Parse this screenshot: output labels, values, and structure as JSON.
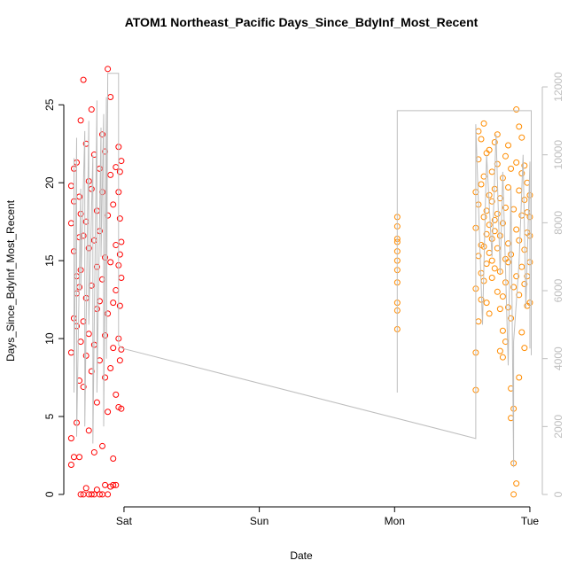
{
  "chart_data": {
    "type": "scatter",
    "title": "ATOM1 Northeast_Pacific Days_Since_BdyInf_Most_Recent",
    "x_label": "Date",
    "y_label": "Days_Since_BdyInf_Most_Recent",
    "xlim": [
      0.555,
      4.092
    ],
    "ylim": [
      -0.8,
      28.2
    ],
    "y2lim": [
      -365,
      12940
    ],
    "xticks": [
      {
        "value": 1,
        "label": "Sat"
      },
      {
        "value": 2,
        "label": "Sun"
      },
      {
        "value": 3,
        "label": "Mon"
      },
      {
        "value": 4,
        "label": "Tue"
      }
    ],
    "yticks": [
      0,
      5,
      10,
      15,
      20,
      25
    ],
    "y2ticks": [
      0,
      2000,
      4000,
      6000,
      8000,
      10000,
      12000
    ],
    "y2_color": "#bebebe",
    "series": [
      {
        "color": "#ff0000",
        "x": [
          0.61,
          0.61,
          0.61,
          0.61,
          0.61,
          0.63,
          0.63,
          0.63,
          0.63,
          0.63,
          0.65,
          0.65,
          0.65,
          0.65,
          0.65,
          0.67,
          0.67,
          0.67,
          0.67,
          0.67,
          0.68,
          0.68,
          0.68,
          0.68,
          0.68,
          0.7,
          0.7,
          0.7,
          0.7,
          0.7,
          0.72,
          0.72,
          0.72,
          0.72,
          0.72,
          0.74,
          0.74,
          0.74,
          0.74,
          0.74,
          0.76,
          0.76,
          0.76,
          0.76,
          0.76,
          0.78,
          0.78,
          0.78,
          0.78,
          0.78,
          0.8,
          0.8,
          0.8,
          0.8,
          0.8,
          0.82,
          0.82,
          0.82,
          0.82,
          0.82,
          0.84,
          0.84,
          0.84,
          0.84,
          0.84,
          0.86,
          0.86,
          0.86,
          0.86,
          0.86,
          0.88,
          0.88,
          0.88,
          0.88,
          0.88,
          0.9,
          0.9,
          0.9,
          0.9,
          0.9,
          0.92,
          0.92,
          0.92,
          0.92,
          0.92,
          0.94,
          0.94,
          0.94,
          0.94,
          0.94,
          0.96,
          0.96,
          0.96,
          0.96,
          0.96,
          0.97,
          0.97,
          0.97,
          0.97,
          0.97,
          0.98,
          0.98,
          0.98,
          0.98,
          0.98
        ],
        "values": [
          1.9,
          3.6,
          9.1,
          17.4,
          19.8,
          11.3,
          15.6,
          20.9,
          2.4,
          18.8,
          14.0,
          12.9,
          21.3,
          4.6,
          10.8,
          16.5,
          7.3,
          19.1,
          13.3,
          2.4,
          0,
          24.0,
          14.4,
          9.8,
          18.0,
          0,
          26.6,
          11.1,
          6.9,
          16.6,
          0.4,
          22.5,
          8.9,
          17.5,
          12.6,
          0,
          10.3,
          15.8,
          4.1,
          20.1,
          0,
          19.6,
          7.9,
          13.4,
          24.7,
          0,
          9.6,
          16.3,
          2.7,
          21.8,
          0.3,
          11.9,
          5.9,
          18.2,
          14.6,
          0,
          20.9,
          8.6,
          12.4,
          16.9,
          0,
          3.1,
          13.8,
          19.4,
          23.1,
          0.6,
          7.5,
          15.2,
          22.0,
          10.2,
          0,
          27.3,
          11.6,
          5.3,
          17.9,
          0.5,
          25.5,
          14.9,
          8.1,
          20.5,
          0.6,
          2.3,
          12.3,
          18.6,
          9.4,
          0.6,
          16.0,
          6.4,
          21.0,
          13.1,
          5.6,
          22.3,
          10.0,
          19.4,
          14.7,
          15.4,
          8.6,
          17.7,
          12.1,
          20.7,
          9.3,
          16.2,
          21.4,
          5.5,
          13.9
        ]
      },
      {
        "color": "#ff8c00",
        "x": [
          3.02,
          3.02,
          3.02,
          3.02,
          3.02,
          3.02,
          3.02,
          3.02,
          3.02,
          3.02,
          3.02,
          3.6,
          3.6,
          3.6,
          3.6,
          3.6,
          3.62,
          3.62,
          3.62,
          3.62,
          3.62,
          3.64,
          3.64,
          3.64,
          3.64,
          3.64,
          3.66,
          3.66,
          3.66,
          3.66,
          3.66,
          3.68,
          3.68,
          3.68,
          3.68,
          3.68,
          3.7,
          3.7,
          3.7,
          3.7,
          3.7,
          3.72,
          3.72,
          3.72,
          3.72,
          3.72,
          3.74,
          3.74,
          3.74,
          3.74,
          3.74,
          3.76,
          3.76,
          3.76,
          3.76,
          3.76,
          3.78,
          3.78,
          3.78,
          3.78,
          3.78,
          3.8,
          3.8,
          3.8,
          3.8,
          3.8,
          3.82,
          3.82,
          3.82,
          3.82,
          3.82,
          3.84,
          3.84,
          3.84,
          3.84,
          3.84,
          3.86,
          3.86,
          3.86,
          3.86,
          3.86,
          3.88,
          3.88,
          3.88,
          3.88,
          3.88,
          3.9,
          3.9,
          3.9,
          3.9,
          3.9,
          3.92,
          3.92,
          3.92,
          3.92,
          3.92,
          3.94,
          3.94,
          3.94,
          3.94,
          3.94,
          3.96,
          3.96,
          3.96,
          3.96,
          3.96,
          3.98,
          3.98,
          3.98,
          3.98,
          3.98,
          4.0,
          4.0,
          4.0,
          4.0,
          4.0
        ],
        "values": [
          10.6,
          11.8,
          12.3,
          13.6,
          14.4,
          15.0,
          15.6,
          16.2,
          16.4,
          17.2,
          17.8,
          6.7,
          9.1,
          13.2,
          17.1,
          19.4,
          11.1,
          15.3,
          18.6,
          21.5,
          23.3,
          12.5,
          16.0,
          19.9,
          22.8,
          14.2,
          15.9,
          17.8,
          20.4,
          13.7,
          23.8,
          14.8,
          16.7,
          18.2,
          21.9,
          12.3,
          11.6,
          15.5,
          17.3,
          19.2,
          22.1,
          13.9,
          16.4,
          18.8,
          20.7,
          15.0,
          14.5,
          17.6,
          19.6,
          22.6,
          16.9,
          13.0,
          15.8,
          18.0,
          21.2,
          23.1,
          9.2,
          11.9,
          14.3,
          16.6,
          19.0,
          8.8,
          10.5,
          12.7,
          17.4,
          20.3,
          9.8,
          13.6,
          15.1,
          18.4,
          21.7,
          12.0,
          14.9,
          16.1,
          19.7,
          22.4,
          4.9,
          6.8,
          11.3,
          15.4,
          20.9,
          0,
          2.0,
          5.5,
          13.3,
          18.3,
          0.7,
          14.0,
          17.0,
          21.3,
          24.7,
          7.5,
          12.8,
          16.3,
          19.5,
          23.6,
          10.4,
          14.6,
          17.9,
          20.6,
          22.9,
          9.4,
          13.5,
          15.7,
          18.9,
          21.1,
          12.1,
          14.0,
          16.8,
          18.1,
          20.0,
          12.3,
          14.9,
          16.6,
          17.8,
          19.2
        ]
      },
      {
        "type": "line",
        "axis": "y2",
        "color": "#bebebe",
        "x": [
          0.63,
          0.63,
          0.65,
          0.65,
          0.68,
          0.68,
          0.71,
          0.71,
          0.74,
          0.74,
          0.77,
          0.77,
          0.8,
          0.8,
          0.83,
          0.83,
          0.85,
          0.85,
          0.87,
          0.87,
          0.88,
          0.96,
          0.96,
          0.99,
          3.6,
          3.6,
          3.65,
          3.68,
          3.72,
          3.75,
          3.78,
          3.8,
          3.84,
          3.86,
          3.88,
          3.88,
          3.92,
          3.95,
          3.97,
          4.0,
          4.0,
          null,
          3.02,
          3.02,
          4.01,
          4.01
        ],
        "values": [
          9900,
          3000,
          10500,
          1700,
          9000,
          6000,
          10700,
          2000,
          11000,
          5000,
          10000,
          1500,
          11600,
          3000,
          10800,
          7000,
          11200,
          2000,
          11700,
          4000,
          12400,
          12400,
          4400,
          4300,
          1650,
          10900,
          5000,
          10000,
          7000,
          10600,
          6500,
          9500,
          3800,
          9000,
          800,
          4500,
          6800,
          10000,
          5500,
          9800,
          4300,
          null,
          3000,
          11300,
          11300,
          4100
        ]
      }
    ]
  }
}
